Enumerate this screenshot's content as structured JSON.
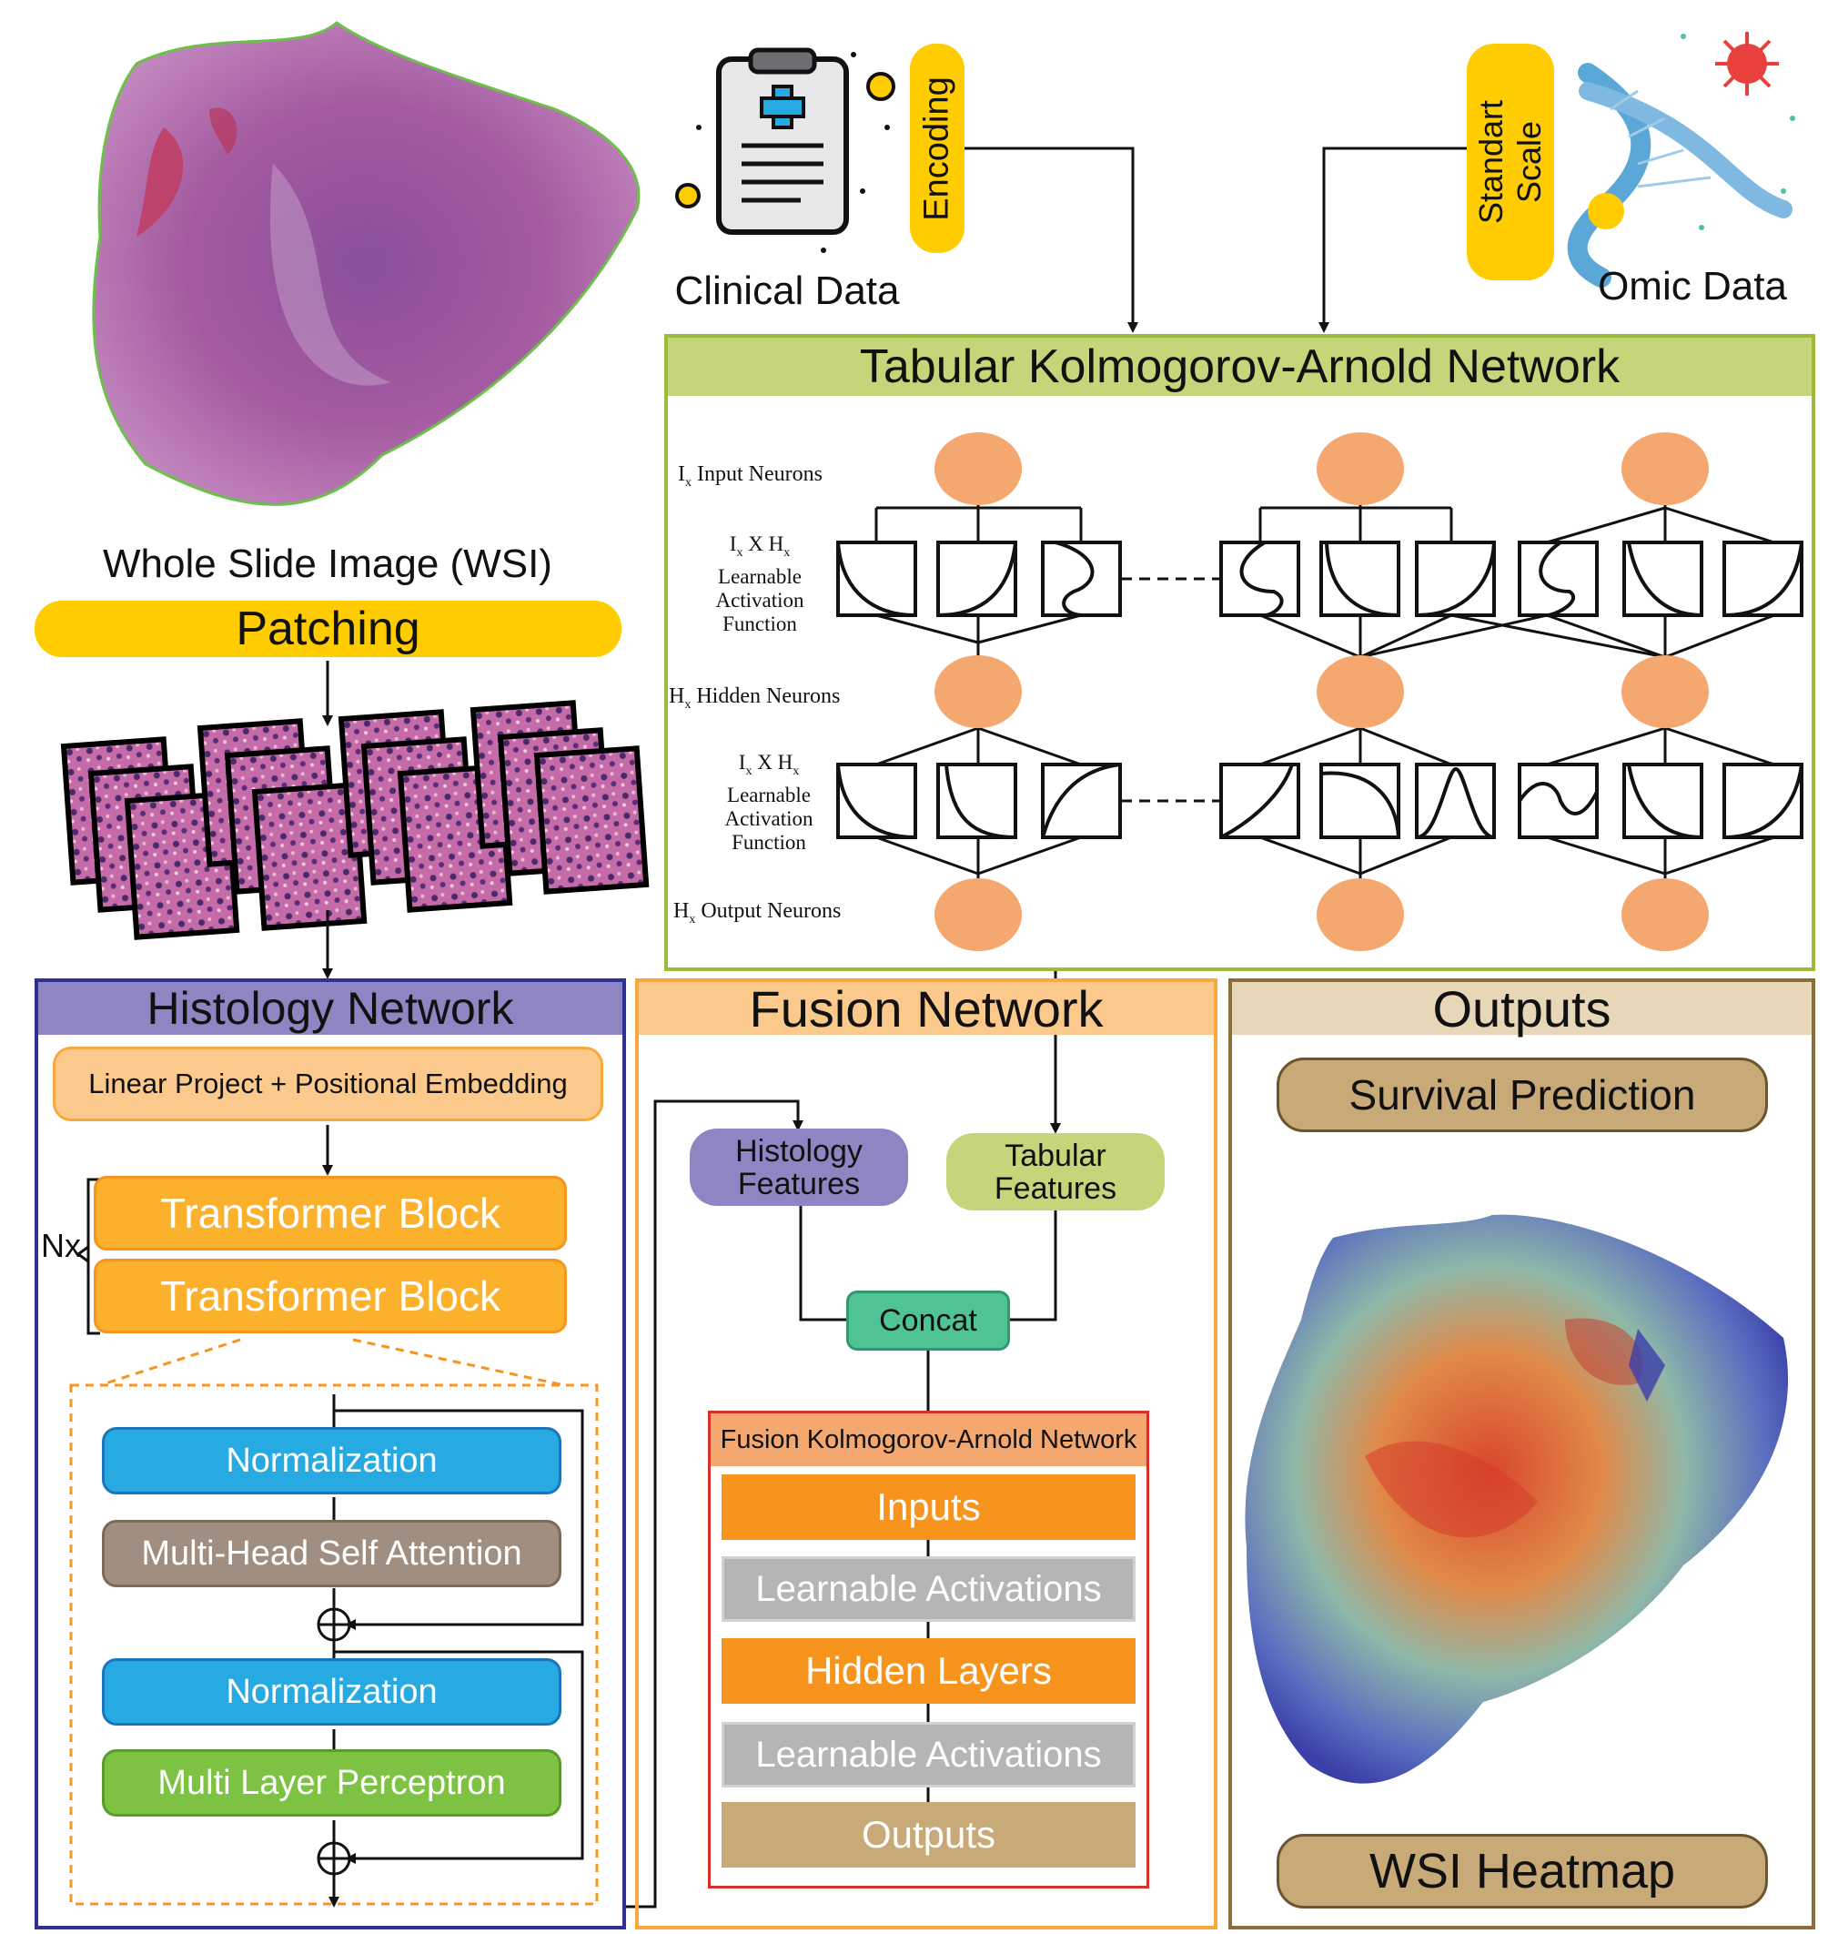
{
  "top": {
    "wsi_label": "Whole Slide Image (WSI)",
    "patching": "Patching",
    "clinical_label": "Clinical Data",
    "encoding": "Encoding",
    "omic_label": "Omic Data",
    "standart_scale": [
      "Standart",
      "Scale"
    ]
  },
  "tkan": {
    "title": "Tabular Kolmogorov-Arnold Network",
    "input_neurons": {
      "sym": "I",
      "sub": "x",
      "text": " Input Neurons"
    },
    "act1": {
      "line1_a": "I",
      "line1_sub1": "x",
      "line1_b": " X H",
      "line1_sub2": "x",
      "line2": "Learnable",
      "line3": "Activation",
      "line4": "Function"
    },
    "hidden_neurons": {
      "sym": "H",
      "sub": "x",
      "text": " Hidden Neurons"
    },
    "act2": {
      "line1_a": "I",
      "line1_sub1": "x",
      "line1_b": " X H",
      "line1_sub2": "x",
      "line2": "Learnable",
      "line3": "Activation",
      "line4": "Function"
    },
    "output_neurons": {
      "sym": "H",
      "sub": "x",
      "text": " Output Neurons"
    }
  },
  "histology": {
    "title": "Histology Network",
    "linear_proj": "Linear Project + Positional Embedding",
    "nx": "Nx",
    "transformer1": "Transformer Block",
    "transformer2": "Transformer Block",
    "norm1": "Normalization",
    "mhsa": "Multi-Head Self Attention",
    "norm2": "Normalization",
    "mlp": "Multi Layer Perceptron",
    "plus": "⊕"
  },
  "fusion": {
    "title": "Fusion Network",
    "hist_features": [
      "Histology",
      "Features"
    ],
    "tab_features": [
      "Tabular",
      "Features"
    ],
    "concat": "Concat",
    "fkan_title": "Fusion Kolmogorov-Arnold Network",
    "inputs": "Inputs",
    "learnable1": "Learnable Activations",
    "hidden": "Hidden Layers",
    "learnable2": "Learnable Activations",
    "outputs": "Outputs"
  },
  "outputs": {
    "title": "Outputs",
    "survival": "Survival Prediction",
    "heatmap": "WSI Heatmap"
  },
  "colors": {
    "yellow": "#ffcc00",
    "orange_neuron": "#f4a86f",
    "tkan_border": "#9bbb3b",
    "tkan_header": "#c5d67a",
    "hist_border": "#2e3192",
    "hist_header": "#8e86c2",
    "fusion_border": "#f7a93b",
    "fusion_header": "#fcc98c",
    "outputs_border": "#8a6d3b",
    "outputs_header": "#e8d6b9",
    "tan": "#c8a978",
    "blue_norm": "#27aae1",
    "green_mlp": "#7dc242",
    "brown_mhsa": "#a08f80",
    "teal_concat": "#4fc393",
    "gray_act": "#b5b5b5",
    "orange_layer": "#f7941d",
    "tkan_input_text": "#111111"
  }
}
